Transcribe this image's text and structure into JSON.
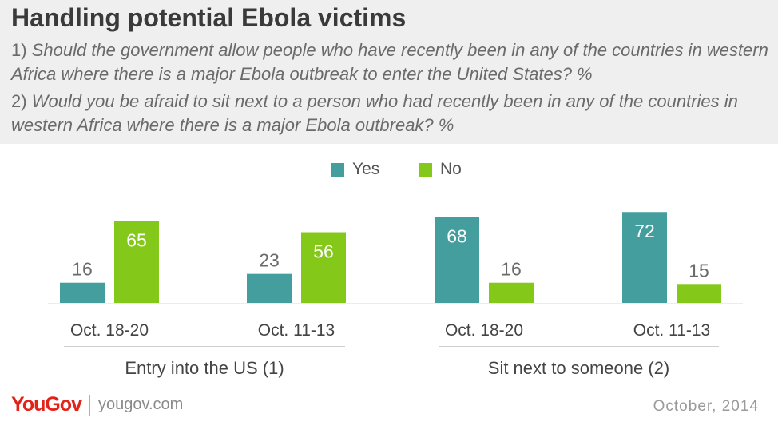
{
  "title": "Handling potential Ebola victims",
  "questions": [
    {
      "num": "1)",
      "text": "Should the government allow people who have recently been in any of the countries in western Africa where there is a major Ebola outbreak to enter the United States? %"
    },
    {
      "num": "2)",
      "text": "Would you be afraid to sit next to a person who had recently been in any of the countries in western Africa where there is a major Ebola outbreak? %"
    }
  ],
  "footer": {
    "logo": "YouGov",
    "site": "yougov.com",
    "date": "October, 2014"
  },
  "chart_data": {
    "type": "bar",
    "series": [
      {
        "name": "Yes",
        "color": "#459e9e"
      },
      {
        "name": "No",
        "color": "#84c81a"
      }
    ],
    "groups": [
      {
        "label": "Entry into the US (1)",
        "categories": [
          {
            "label": "Oct. 18-20",
            "values": [
              16,
              65
            ]
          },
          {
            "label": "Oct. 11-13",
            "values": [
              23,
              56
            ]
          }
        ]
      },
      {
        "label": "Sit next to someone (2)",
        "categories": [
          {
            "label": "Oct. 18-20",
            "values": [
              68,
              16
            ]
          },
          {
            "label": "Oct. 11-13",
            "values": [
              72,
              15
            ]
          }
        ]
      }
    ],
    "ylim": [
      0,
      100
    ],
    "grid": false,
    "legend": "top-center"
  }
}
